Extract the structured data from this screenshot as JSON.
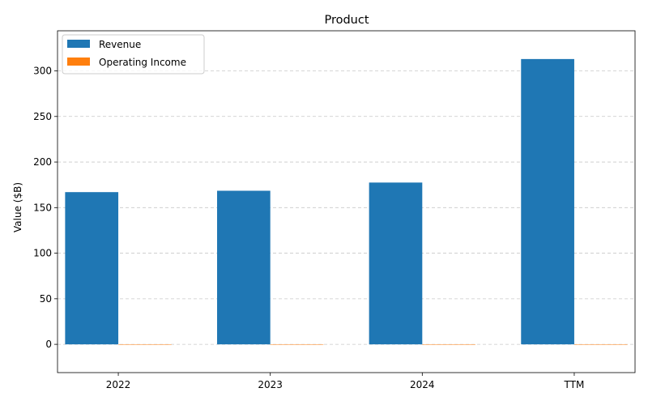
{
  "chart_data": {
    "type": "bar",
    "title": "Product",
    "xlabel": "",
    "ylabel": "Value ($B)",
    "categories": [
      "2022",
      "2023",
      "2024",
      "TTM"
    ],
    "series": [
      {
        "name": "Revenue",
        "color": "#1f77b4",
        "values": [
          167,
          168.5,
          177.5,
          313
        ]
      },
      {
        "name": "Operating Income",
        "color": "#ff7f0e",
        "values": [
          0,
          0,
          0,
          0
        ]
      }
    ],
    "ylim": [
      -31,
      344
    ],
    "yticks": [
      0,
      50,
      100,
      150,
      200,
      250,
      300
    ],
    "grid": "y-dashed",
    "legend_position": "top-left"
  }
}
